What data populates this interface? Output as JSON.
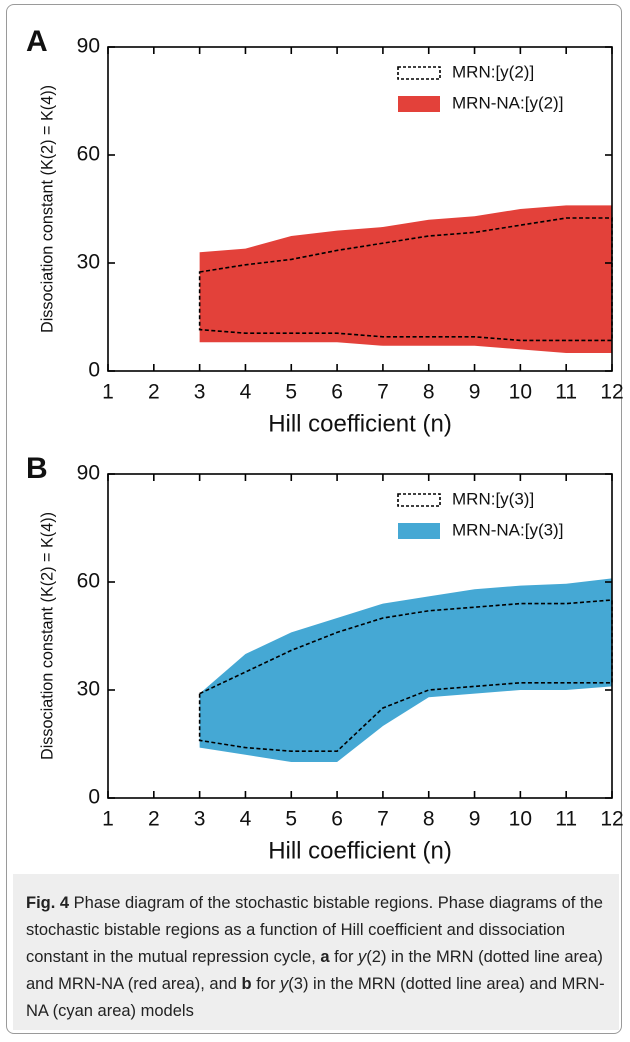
{
  "chart_data": [
    {
      "type": "area",
      "panel": "A",
      "xlabel": "Hill coefficient (n)",
      "ylabel": "Dissociation constant (K(2) = K(4))",
      "xlim": [
        1,
        12
      ],
      "xticks": [
        1,
        2,
        3,
        4,
        5,
        6,
        7,
        8,
        9,
        10,
        11,
        12
      ],
      "ylim": [
        0,
        90
      ],
      "yticks": [
        0,
        30,
        60,
        90
      ],
      "legend": "upper right",
      "series": [
        {
          "name": "MRN:[y(2)]",
          "style": "dashed-outline",
          "color": "#000000",
          "x": [
            3,
            4,
            5,
            6,
            7,
            8,
            9,
            10,
            11,
            12
          ],
          "high": [
            27.5,
            29.5,
            31,
            33.5,
            35.5,
            37.5,
            38.5,
            40.5,
            42.5,
            42.5
          ],
          "low": [
            11.5,
            10.5,
            10.5,
            10.5,
            9.5,
            9.5,
            9.5,
            8.5,
            8.5,
            8.5
          ]
        },
        {
          "name": "MRN-NA:[y(2)]",
          "style": "filled",
          "color": "#e3413a",
          "x": [
            3,
            4,
            5,
            6,
            7,
            8,
            9,
            10,
            11,
            12
          ],
          "high": [
            33,
            34,
            37.5,
            39,
            40,
            42,
            43,
            45,
            46,
            46
          ],
          "low": [
            8,
            8,
            8,
            8,
            7,
            7,
            7,
            6,
            5,
            5
          ]
        }
      ]
    },
    {
      "type": "area",
      "panel": "B",
      "xlabel": "Hill coefficient (n)",
      "ylabel": "Dissociation constant (K(2) = K(4))",
      "xlim": [
        1,
        12
      ],
      "xticks": [
        1,
        2,
        3,
        4,
        5,
        6,
        7,
        8,
        9,
        10,
        11,
        12
      ],
      "ylim": [
        0,
        90
      ],
      "yticks": [
        0,
        30,
        60,
        90
      ],
      "legend": "upper right",
      "series": [
        {
          "name": "MRN:[y(3)]",
          "style": "dashed-outline",
          "color": "#000000",
          "x": [
            3,
            4,
            5,
            6,
            7,
            8,
            9,
            10,
            11,
            12
          ],
          "high": [
            29,
            35,
            41,
            46,
            50,
            52,
            53,
            54,
            54,
            55
          ],
          "low": [
            16,
            14,
            13,
            13,
            25,
            30,
            31,
            32,
            32,
            32
          ]
        },
        {
          "name": "MRN-NA:[y(3)]",
          "style": "filled",
          "color": "#45a8d4",
          "x": [
            3,
            4,
            5,
            6,
            7,
            8,
            9,
            10,
            11,
            12
          ],
          "high": [
            29,
            40,
            46,
            50,
            54,
            56,
            58,
            59,
            59.5,
            61
          ],
          "low": [
            14,
            12,
            10,
            10,
            20,
            28,
            29,
            30,
            30,
            31
          ]
        }
      ]
    }
  ],
  "caption": {
    "parts": [
      {
        "text": "Fig. 4",
        "style": "bold"
      },
      {
        "text": " Phase diagram of the stochastic bistable regions. Phase diagrams of the stochastic bistable regions as a function of Hill coefficient and dissociation constant in the mutual repression cycle, ",
        "style": "normal"
      },
      {
        "text": "a",
        "style": "bold"
      },
      {
        "text": " for ",
        "style": "normal"
      },
      {
        "text": "y",
        "style": "italic"
      },
      {
        "text": "(2) in the MRN (dotted line area) and MRN-NA (red area), and ",
        "style": "normal"
      },
      {
        "text": "b",
        "style": "bold"
      },
      {
        "text": " for ",
        "style": "normal"
      },
      {
        "text": "y",
        "style": "italic"
      },
      {
        "text": "(3) in the MRN (dotted line area) and MRN-NA (cyan area) models",
        "style": "normal"
      }
    ]
  }
}
